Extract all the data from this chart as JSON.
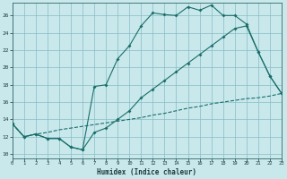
{
  "xlabel": "Humidex (Indice chaleur)",
  "bg_color": "#c8e8ec",
  "grid_color": "#88bcc4",
  "line_color": "#1a6e68",
  "xlim": [
    0,
    23
  ],
  "ylim": [
    9.5,
    27.5
  ],
  "xticks": [
    0,
    1,
    2,
    3,
    4,
    5,
    6,
    7,
    8,
    9,
    10,
    11,
    12,
    13,
    14,
    15,
    16,
    17,
    18,
    19,
    20,
    21,
    22,
    23
  ],
  "yticks": [
    10,
    12,
    14,
    16,
    18,
    20,
    22,
    24,
    26
  ],
  "line1_x": [
    0,
    1,
    2,
    3,
    4,
    5,
    6,
    7,
    8,
    9,
    10,
    11,
    12,
    13,
    14,
    15,
    16,
    17,
    18,
    19,
    20,
    21,
    22,
    23
  ],
  "line1_y": [
    13.5,
    12.0,
    12.3,
    11.8,
    11.8,
    10.8,
    10.5,
    17.8,
    18.0,
    21.0,
    22.5,
    24.8,
    26.3,
    26.1,
    26.0,
    27.0,
    26.6,
    27.2,
    26.0,
    26.0,
    25.0,
    21.8,
    19.0,
    17.0
  ],
  "line2_x": [
    0,
    1,
    2,
    3,
    4,
    5,
    6,
    7,
    8,
    9,
    10,
    11,
    12,
    13,
    14,
    15,
    16,
    17,
    18,
    19,
    20,
    21,
    22,
    23
  ],
  "line2_y": [
    13.5,
    12.0,
    12.3,
    11.8,
    11.8,
    10.8,
    10.5,
    12.5,
    13.0,
    14.0,
    15.0,
    16.5,
    17.5,
    18.5,
    19.5,
    20.5,
    21.5,
    22.5,
    23.5,
    24.5,
    24.8,
    21.8,
    19.0,
    17.0
  ],
  "line3_x": [
    0,
    1,
    2,
    3,
    4,
    5,
    6,
    7,
    8,
    9,
    10,
    11,
    12,
    13,
    14,
    15,
    16,
    17,
    18,
    19,
    20,
    21,
    22,
    23
  ],
  "line3_y": [
    13.5,
    12.0,
    12.3,
    12.5,
    12.8,
    13.0,
    13.2,
    13.4,
    13.6,
    13.8,
    14.0,
    14.2,
    14.5,
    14.7,
    15.0,
    15.3,
    15.5,
    15.8,
    16.0,
    16.2,
    16.4,
    16.5,
    16.7,
    17.0
  ]
}
